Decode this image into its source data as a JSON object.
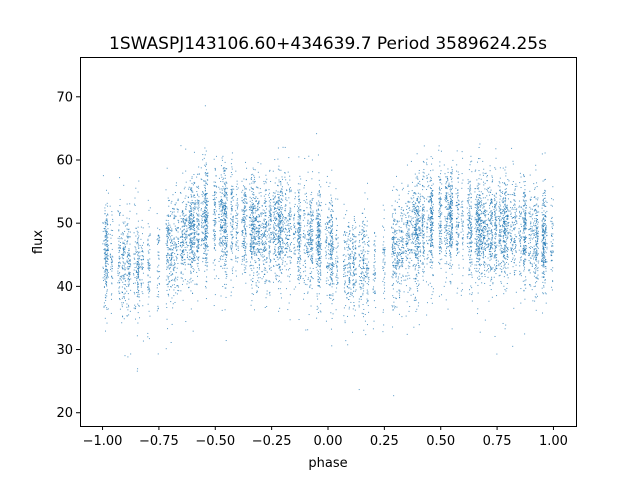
{
  "chart_data": {
    "type": "scatter",
    "title": "1SWASPJ143106.60+434639.7 Period 3589624.25s",
    "xlabel": "phase",
    "ylabel": "flux",
    "xlim": [
      -1.1,
      1.1
    ],
    "ylim": [
      17.9,
      76.3
    ],
    "xticks": [
      -1.0,
      -0.75,
      -0.5,
      -0.25,
      0.0,
      0.25,
      0.5,
      0.75,
      1.0
    ],
    "xtick_labels": [
      "−1.00",
      "−0.75",
      "−0.50",
      "−0.25",
      "0.00",
      "0.25",
      "0.50",
      "0.75",
      "1.00"
    ],
    "yticks": [
      20,
      30,
      40,
      50,
      60,
      70
    ],
    "ytick_labels": [
      "20",
      "30",
      "40",
      "50",
      "60",
      "70"
    ],
    "grid": false,
    "legend": "none",
    "marker_color": "#1f77b4",
    "phase_range": [
      -1.0,
      1.0
    ],
    "folded_profile": {
      "phase": [
        0.0,
        0.1,
        0.2,
        0.3,
        0.4,
        0.5,
        0.6,
        0.7,
        0.8,
        0.9,
        1.0
      ],
      "median_flux": [
        46.5,
        43.5,
        43.0,
        46.0,
        49.0,
        51.0,
        50.0,
        48.5,
        49.5,
        48.0,
        46.5
      ]
    },
    "typical_scatter": 4.0,
    "flux_extent": [
      20.2,
      73.9
    ]
  }
}
